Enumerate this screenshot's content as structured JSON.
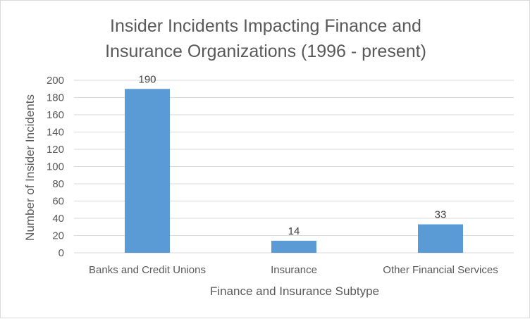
{
  "chart_data": {
    "type": "bar",
    "title_lines": [
      "Insider Incidents Impacting Finance and",
      "Insurance Organizations (1996 - present)"
    ],
    "categories": [
      "Banks and Credit Unions",
      "Insurance",
      "Other Financial Services"
    ],
    "values": [
      190,
      14,
      33
    ],
    "data_labels": [
      "190",
      "14",
      "33"
    ],
    "xlabel": "Finance and Insurance Subtype",
    "ylabel": "Number of Insider Incidents",
    "ylim": [
      0,
      200
    ],
    "yticks": [
      "0",
      "20",
      "40",
      "60",
      "80",
      "100",
      "120",
      "140",
      "160",
      "180",
      "200"
    ],
    "grid": true,
    "legend": "none",
    "bar_color": "#5b9bd5",
    "grid_color": "#d9d9d9"
  }
}
